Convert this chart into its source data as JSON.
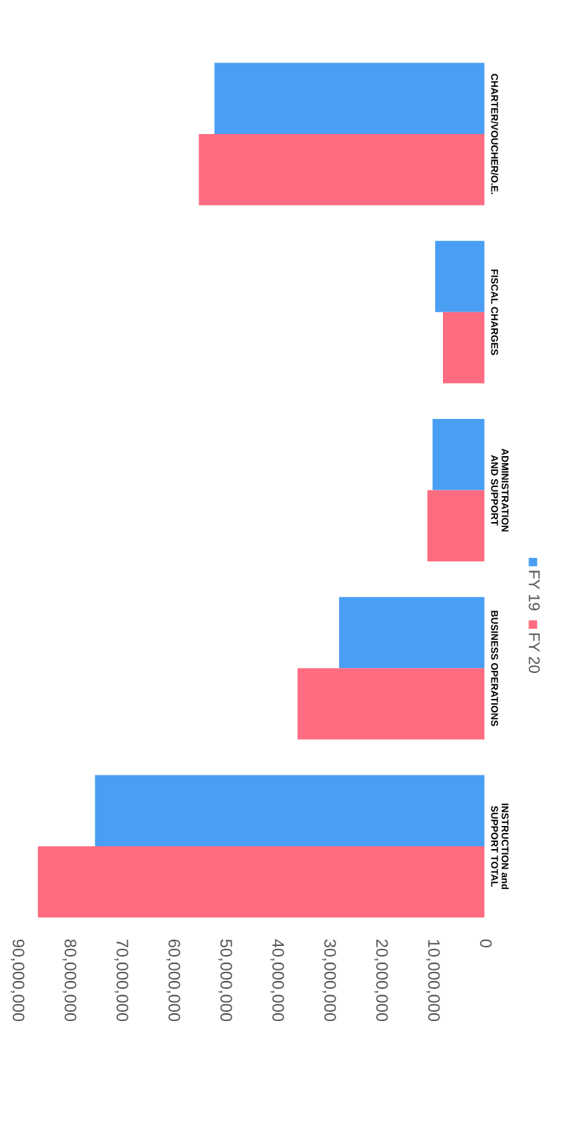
{
  "chart_data": {
    "type": "bar",
    "orientation": "horizontal",
    "categories": [
      "CHARTER/VOUCHER/O.E.",
      "FISCAL CHARGES",
      "ADMINISTRATION AND SUPPORT",
      "BUSINESS OPERATIONS",
      "INSTRUCTION and SUPPORT TOTAL"
    ],
    "series": [
      {
        "name": "FY 19",
        "color": "#4a9ff5",
        "values": [
          52000000,
          9500000,
          10000000,
          28000000,
          75000000
        ]
      },
      {
        "name": "FY 20",
        "color": "#ff6b80",
        "values": [
          55000000,
          8000000,
          11000000,
          36000000,
          86000000
        ]
      }
    ],
    "xlim": [
      90000000,
      0
    ],
    "xticks": [
      {
        "value": 90000000,
        "label": "90,000,000"
      },
      {
        "value": 80000000,
        "label": "80,000,000"
      },
      {
        "value": 70000000,
        "label": "70,000,000"
      },
      {
        "value": 60000000,
        "label": "60,000,000"
      },
      {
        "value": 50000000,
        "label": "50,000,000"
      },
      {
        "value": 40000000,
        "label": "40,000,000"
      },
      {
        "value": 30000000,
        "label": "30,000,000"
      },
      {
        "value": 20000000,
        "label": "20,000,000"
      },
      {
        "value": 10000000,
        "label": "10,000,000"
      },
      0
    ],
    "grid": false,
    "legend": "right"
  }
}
